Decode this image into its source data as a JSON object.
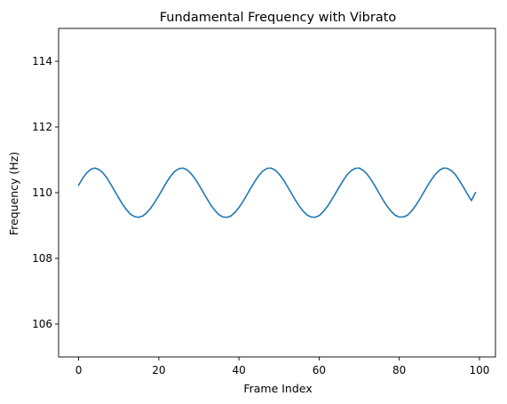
{
  "chart_data": {
    "type": "line",
    "title": "Fundamental Frequency with Vibrato",
    "xlabel": "Frame Index",
    "ylabel": "Frequency (Hz)",
    "xlim": [
      -5,
      104
    ],
    "ylim": [
      105,
      115
    ],
    "xticks": [
      0,
      20,
      40,
      60,
      80,
      100
    ],
    "xtick_labels": [
      "0",
      "20",
      "40",
      "60",
      "80",
      "100"
    ],
    "yticks": [
      106,
      108,
      110,
      112,
      114
    ],
    "ytick_labels": [
      "106",
      "108",
      "110",
      "112",
      "114"
    ],
    "grid": false,
    "series": [
      {
        "color": "#1f77b4",
        "x": [
          0,
          1,
          2,
          3,
          4,
          5,
          6,
          7,
          8,
          9,
          10,
          11,
          12,
          13,
          14,
          15,
          16,
          17,
          18,
          19,
          20,
          21,
          22,
          23,
          24,
          25,
          26,
          27,
          28,
          29,
          30,
          31,
          32,
          33,
          34,
          35,
          36,
          37,
          38,
          39,
          40,
          41,
          42,
          43,
          44,
          45,
          46,
          47,
          48,
          49,
          50,
          51,
          52,
          53,
          54,
          55,
          56,
          57,
          58,
          59,
          60,
          61,
          62,
          63,
          64,
          65,
          66,
          67,
          68,
          69,
          70,
          71,
          72,
          73,
          74,
          75,
          76,
          77,
          78,
          79,
          80,
          81,
          82,
          83,
          84,
          85,
          86,
          87,
          88,
          89,
          90,
          91,
          92,
          93,
          94,
          95,
          96,
          97,
          98,
          99
        ],
        "y": [
          110.23,
          110.44,
          110.6,
          110.71,
          110.75,
          110.71,
          110.61,
          110.46,
          110.26,
          110.05,
          109.84,
          109.64,
          109.47,
          109.34,
          109.27,
          109.25,
          109.29,
          109.39,
          109.53,
          109.71,
          109.91,
          110.12,
          110.33,
          110.51,
          110.65,
          110.73,
          110.75,
          110.7,
          110.59,
          110.43,
          110.24,
          110.03,
          109.82,
          109.62,
          109.46,
          109.33,
          109.26,
          109.25,
          109.29,
          109.4,
          109.55,
          109.73,
          109.94,
          110.15,
          110.35,
          110.53,
          110.66,
          110.74,
          110.75,
          110.69,
          110.57,
          110.41,
          110.21,
          110.0,
          109.79,
          109.6,
          109.44,
          109.32,
          109.26,
          109.25,
          109.3,
          109.42,
          109.57,
          109.76,
          109.96,
          110.17,
          110.37,
          110.55,
          110.67,
          110.74,
          110.75,
          110.68,
          110.56,
          110.39,
          110.19,
          109.98,
          109.77,
          109.58,
          109.43,
          109.31,
          109.26,
          109.26,
          109.31,
          109.43,
          109.59,
          109.78,
          109.99,
          110.2,
          110.39,
          110.56,
          110.68,
          110.75,
          110.74,
          110.67,
          110.55,
          110.37,
          110.17,
          109.96,
          109.76,
          110.0
        ]
      }
    ]
  }
}
